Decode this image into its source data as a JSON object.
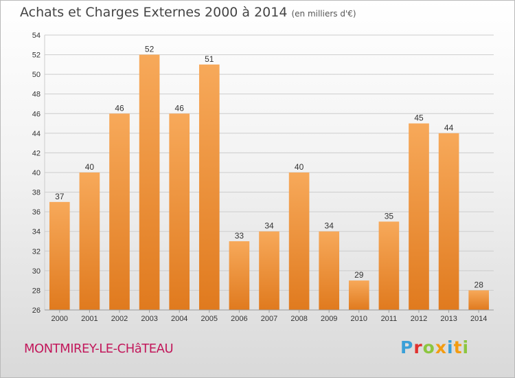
{
  "header": {
    "title": "Achats et Charges Externes 2000 à 2014",
    "unit": "(en milliers d'€)"
  },
  "footer": {
    "place": "MONTMIREY-LE-CHâTEAU",
    "logo": "Proxiti",
    "logo_colors": [
      "#3aa0d8",
      "#e0312f",
      "#8cc63f",
      "#f39c12",
      "#3aa0d8",
      "#f39c12",
      "#8cc63f"
    ]
  },
  "colors": {
    "bar_light": "#f7a95a",
    "bar_dark": "#e07a1e",
    "grid": "#cccccc",
    "axis_text": "#333333"
  },
  "chart_data": {
    "type": "bar",
    "categories": [
      "2000",
      "2001",
      "2002",
      "2003",
      "2004",
      "2005",
      "2006",
      "2007",
      "2008",
      "2009",
      "2010",
      "2011",
      "2012",
      "2013",
      "2014"
    ],
    "values": [
      37,
      40,
      46,
      52,
      46,
      51,
      33,
      34,
      40,
      34,
      29,
      35,
      45,
      44,
      28
    ],
    "ylim": [
      26,
      54
    ],
    "yticks": [
      26,
      28,
      30,
      32,
      34,
      36,
      38,
      40,
      42,
      44,
      46,
      48,
      50,
      52,
      54
    ],
    "grid": true,
    "title": "Achats et Charges Externes 2000 à 2014",
    "xlabel": "",
    "ylabel": ""
  }
}
